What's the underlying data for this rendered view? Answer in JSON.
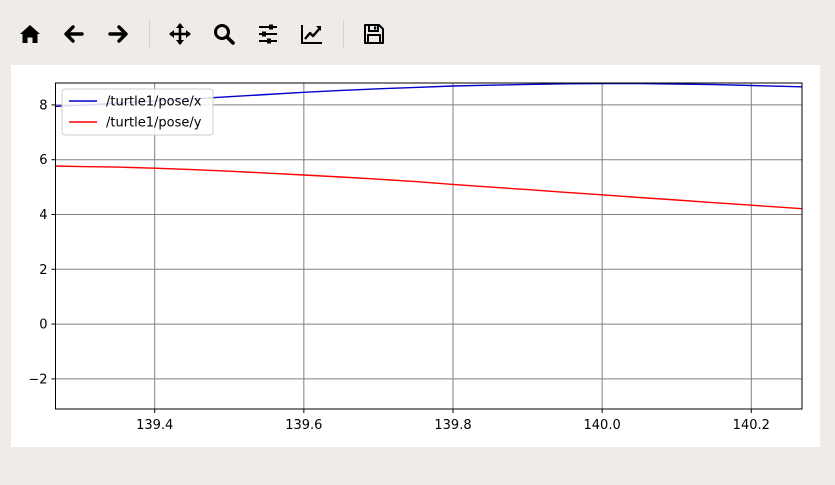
{
  "toolbar": {
    "buttons": [
      {
        "name": "home-button",
        "icon": "home-icon"
      },
      {
        "name": "back-button",
        "icon": "arrow-left-icon"
      },
      {
        "name": "forward-button",
        "icon": "arrow-right-icon"
      },
      {
        "name": "pan-button",
        "icon": "move-icon"
      },
      {
        "name": "zoom-button",
        "icon": "magnifier-icon"
      },
      {
        "name": "configure-subplots-button",
        "icon": "sliders-icon"
      },
      {
        "name": "edit-axes-button",
        "icon": "chart-line-icon"
      },
      {
        "name": "save-button",
        "icon": "floppy-disk-icon"
      }
    ]
  },
  "chart_data": {
    "type": "line",
    "title": "",
    "xlabel": "",
    "ylabel": "",
    "xlim": [
      139.267,
      140.268
    ],
    "ylim": [
      -3.1,
      8.8
    ],
    "xticks": [
      139.4,
      139.6,
      139.8,
      140.0,
      140.2
    ],
    "xtick_labels": [
      "139.4",
      "139.6",
      "139.8",
      "140.0",
      "140.2"
    ],
    "yticks": [
      -2,
      0,
      2,
      4,
      6,
      8
    ],
    "ytick_labels": [
      "−2",
      "0",
      "2",
      "4",
      "6",
      "8"
    ],
    "grid": true,
    "legend_position": "top-left",
    "series": [
      {
        "name": "/turtle1/pose/x",
        "color": "#0000cc",
        "x": [
          139.267,
          139.31,
          139.35,
          139.4,
          139.45,
          139.5,
          139.55,
          139.6,
          139.65,
          139.7,
          139.75,
          139.8,
          139.85,
          139.9,
          139.95,
          140.0,
          140.05,
          140.1,
          140.15,
          140.2,
          140.268
        ],
        "y": [
          7.95,
          8.0,
          8.07,
          8.14,
          8.22,
          8.3,
          8.38,
          8.46,
          8.53,
          8.59,
          8.64,
          8.69,
          8.72,
          8.75,
          8.77,
          8.78,
          8.78,
          8.76,
          8.74,
          8.71,
          8.66
        ]
      },
      {
        "name": "/turtle1/pose/y",
        "color": "#ff0000",
        "x": [
          139.267,
          139.3,
          139.35,
          139.4,
          139.45,
          139.5,
          139.55,
          139.6,
          139.65,
          139.7,
          139.75,
          139.8,
          139.85,
          139.9,
          139.95,
          140.0,
          140.05,
          140.1,
          140.15,
          140.2,
          140.268
        ],
        "y": [
          5.77,
          5.75,
          5.73,
          5.69,
          5.64,
          5.58,
          5.51,
          5.44,
          5.37,
          5.29,
          5.2,
          5.1,
          5.0,
          4.91,
          4.81,
          4.72,
          4.62,
          4.53,
          4.43,
          4.34,
          4.21
        ]
      }
    ]
  }
}
